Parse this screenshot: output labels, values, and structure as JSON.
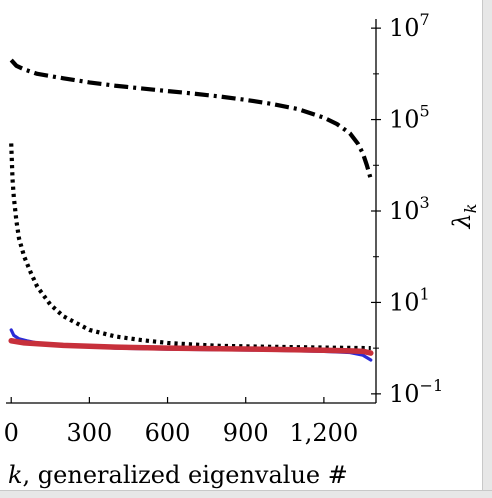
{
  "chart_data": {
    "type": "line",
    "title": "",
    "xlabel": "k, generalized eigenvalue #",
    "xlabel_parts": {
      "var": "k",
      "rest": ", generalized eigenvalue #"
    },
    "ylabel": "λ_k",
    "ylabel_parts": {
      "sym": "λ",
      "sub": "k"
    },
    "xlim": [
      -20,
      1400
    ],
    "ylim_log10": [
      -1.2,
      7.2
    ],
    "y_scale": "log",
    "y_axis_side": "right",
    "grid": false,
    "legend": "none",
    "x_ticks": [
      {
        "value": 0,
        "label": "0"
      },
      {
        "value": 300,
        "label": "300"
      },
      {
        "value": 600,
        "label": "600"
      },
      {
        "value": 900,
        "label": "900"
      },
      {
        "value": 1200,
        "label": "1,200"
      }
    ],
    "y_ticks": [
      {
        "exp": 7,
        "base": "10",
        "sup": "7"
      },
      {
        "exp": 5,
        "base": "10",
        "sup": "5"
      },
      {
        "exp": 3,
        "base": "10",
        "sup": "3"
      },
      {
        "exp": 1,
        "base": "10",
        "sup": "1"
      },
      {
        "exp": -1,
        "base": "10",
        "sup": "−1"
      }
    ],
    "series": [
      {
        "style": "dashdot",
        "color": "#000000",
        "x": [
          0,
          20,
          50,
          100,
          200,
          300,
          400,
          500,
          600,
          700,
          800,
          900,
          1000,
          1100,
          1200,
          1250,
          1300,
          1330,
          1350,
          1365,
          1380
        ],
        "y": [
          2000000,
          1500000,
          1250000,
          1000000,
          800000,
          650000,
          550000,
          480000,
          420000,
          370000,
          320000,
          270000,
          220000,
          170000,
          110000,
          80000,
          50000,
          30000,
          18000,
          10000,
          5000
        ]
      },
      {
        "style": "dotted",
        "color": "#000000",
        "x": [
          0,
          5,
          10,
          20,
          30,
          50,
          75,
          100,
          150,
          200,
          300,
          400,
          500,
          600,
          700,
          800,
          1000,
          1200,
          1380
        ],
        "y": [
          30000,
          5000,
          2000,
          600,
          250,
          100,
          45,
          22,
          9,
          5,
          2.5,
          1.8,
          1.5,
          1.3,
          1.2,
          1.12,
          1.07,
          1.03,
          1.0
        ]
      },
      {
        "style": "solid",
        "color": "#2b2bd6",
        "x": [
          0,
          10,
          30,
          60,
          100,
          200,
          400,
          600,
          800,
          1000,
          1200,
          1300,
          1350,
          1380
        ],
        "y": [
          2.5,
          1.9,
          1.6,
          1.45,
          1.3,
          1.15,
          1.0,
          0.95,
          0.92,
          0.9,
          0.85,
          0.8,
          0.7,
          0.55
        ]
      },
      {
        "style": "solid-thick",
        "color": "#c7303b",
        "x": [
          0,
          50,
          200,
          400,
          600,
          800,
          1000,
          1200,
          1300,
          1350,
          1380
        ],
        "y": [
          1.45,
          1.3,
          1.15,
          1.05,
          1.0,
          0.97,
          0.94,
          0.9,
          0.87,
          0.85,
          0.78
        ]
      }
    ]
  }
}
